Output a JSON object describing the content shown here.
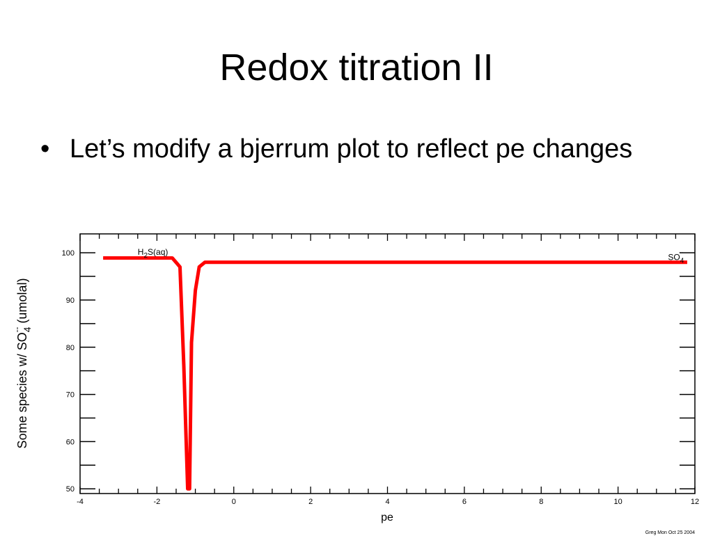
{
  "slide": {
    "title": "Redox titration II",
    "bullet_marker": "•",
    "bullet_text": "Let’s modify a bjerrum plot to reflect pe changes",
    "footer": "Greg Mon Oct 25 2004"
  },
  "chart_data": {
    "type": "line",
    "title": "",
    "xlabel": "pe",
    "ylabel_parts": {
      "prefix": "Some species w/ SO",
      "subscript": "4",
      "superscript": "--",
      "suffix": " (umolal)"
    },
    "xlim": [
      -4,
      12
    ],
    "ylim": [
      49,
      104
    ],
    "xticks": [
      -4,
      -2,
      0,
      2,
      4,
      6,
      8,
      10,
      12
    ],
    "yticks": [
      50,
      60,
      70,
      80,
      90,
      100
    ],
    "grid": false,
    "series": [
      {
        "color": "#ff0000",
        "points": [
          [
            -3.4,
            98.9
          ],
          [
            -1.6,
            98.9
          ],
          [
            -1.4,
            97.0
          ],
          [
            -1.3,
            76.0
          ],
          [
            -1.2,
            50.0
          ],
          [
            -1.15,
            50.0
          ],
          [
            -1.1,
            81.0
          ],
          [
            -1.0,
            92.0
          ],
          [
            -0.9,
            97.0
          ],
          [
            -0.75,
            98.0
          ],
          [
            0,
            98.0
          ],
          [
            11.8,
            98.0
          ]
        ]
      }
    ],
    "annotations": [
      {
        "base": "H",
        "subscript": "2",
        "rest": "S(aq)",
        "superscript": "",
        "at": [
          -2.5,
          99.6
        ]
      },
      {
        "base": "SO",
        "subscript": "4",
        "rest": "",
        "superscript": "--",
        "at": [
          11.3,
          98.5
        ]
      }
    ]
  }
}
